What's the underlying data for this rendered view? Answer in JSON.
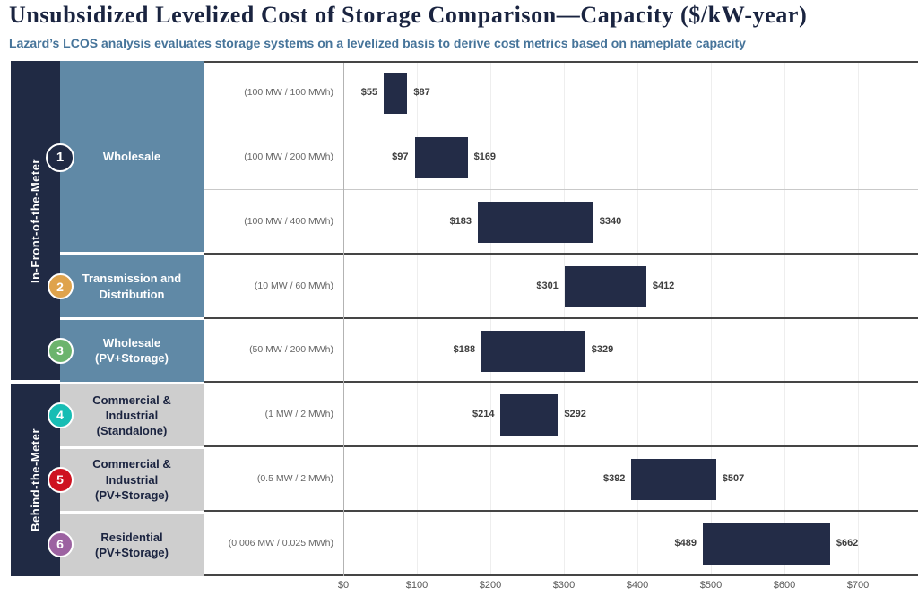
{
  "header": {
    "title": "Unsubsidized Levelized Cost of Storage Comparison—Capacity ($/kW-year)",
    "subtitle": "Lazard’s LCOS analysis evaluates storage systems on a levelized basis to derive cost metrics based on nameplate capacity"
  },
  "colors": {
    "navy": "#202A44",
    "bar": "#232C47",
    "steel_blue": "#6089A6",
    "gray_cell": "#CECECE",
    "dark_text": "#1B2440",
    "white_text": "#FFFFFF",
    "title_text": "#1A2440",
    "subtitle_text": "#46749A"
  },
  "meter_groups": [
    {
      "label": "In-Front-of-the-Meter",
      "row_span": 5
    },
    {
      "label": "Behind-the-Meter",
      "row_span": 3
    }
  ],
  "categories": [
    {
      "number": "1",
      "label": "Wholesale",
      "row_span": 3,
      "badge_color": "#202A44",
      "cell_bg": "#6089A6",
      "text_color": "#FFFFFF"
    },
    {
      "number": "2",
      "label": "Transmission and\nDistribution",
      "row_span": 1,
      "badge_color": "#DFA34C",
      "cell_bg": "#6089A6",
      "text_color": "#FFFFFF"
    },
    {
      "number": "3",
      "label": "Wholesale\n(PV+Storage)",
      "row_span": 1,
      "badge_color": "#6CB46D",
      "cell_bg": "#6089A6",
      "text_color": "#FFFFFF"
    },
    {
      "number": "4",
      "label": "Commercial &\nIndustrial\n(Standalone)",
      "row_span": 1,
      "badge_color": "#17BDB4",
      "cell_bg": "#CECECE",
      "text_color": "#1B2440"
    },
    {
      "number": "5",
      "label": "Commercial &\nIndustrial\n(PV+Storage)",
      "row_span": 1,
      "badge_color": "#CE1220",
      "cell_bg": "#CECECE",
      "text_color": "#1B2440"
    },
    {
      "number": "6",
      "label": "Residential\n(PV+Storage)",
      "row_span": 1,
      "badge_color": "#9C62A1",
      "cell_bg": "#CECECE",
      "text_color": "#1B2440"
    }
  ],
  "rows": [
    {
      "capacity": "(100 MW / 100 MWh)",
      "low": 55,
      "high": 87,
      "low_label": "$55",
      "high_label": "$87"
    },
    {
      "capacity": "(100 MW / 200 MWh)",
      "low": 97,
      "high": 169,
      "low_label": "$97",
      "high_label": "$169"
    },
    {
      "capacity": "(100 MW / 400 MWh)",
      "low": 183,
      "high": 340,
      "low_label": "$183",
      "high_label": "$340"
    },
    {
      "capacity": "(10 MW / 60 MWh)",
      "low": 301,
      "high": 412,
      "low_label": "$301",
      "high_label": "$412"
    },
    {
      "capacity": "(50 MW / 200 MWh)",
      "low": 188,
      "high": 329,
      "low_label": "$188",
      "high_label": "$329"
    },
    {
      "capacity": "(1 MW / 2 MWh)",
      "low": 214,
      "high": 292,
      "low_label": "$214",
      "high_label": "$292"
    },
    {
      "capacity": "(0.5 MW / 2 MWh)",
      "low": 392,
      "high": 507,
      "low_label": "$392",
      "high_label": "$507"
    },
    {
      "capacity": "(0.006 MW / 0.025 MWh)",
      "low": 489,
      "high": 662,
      "low_label": "$489",
      "high_label": "$662"
    }
  ],
  "axis": {
    "ticks": [
      {
        "label": "$0",
        "value": 0
      },
      {
        "label": "$100",
        "value": 100
      },
      {
        "label": "$200",
        "value": 200
      },
      {
        "label": "$300",
        "value": 300
      },
      {
        "label": "$400",
        "value": 400
      },
      {
        "label": "$500",
        "value": 500
      },
      {
        "label": "$600",
        "value": 600
      },
      {
        "label": "$700",
        "value": 700
      }
    ],
    "max": 700
  },
  "chart_data": {
    "type": "bar",
    "subtype": "horizontal-range",
    "title": "Unsubsidized Levelized Cost of Storage Comparison—Capacity ($/kW-year)",
    "subtitle": "Lazard’s LCOS analysis evaluates storage systems on a levelized basis to derive cost metrics based on nameplate capacity",
    "units": "$/kW-year",
    "xlim": [
      0,
      700
    ],
    "x_ticks": [
      "$0",
      "$100",
      "$200",
      "$300",
      "$400",
      "$500",
      "$600",
      "$700"
    ],
    "grid": true,
    "groups": [
      {
        "meter": "In-Front-of-the-Meter",
        "number": 1,
        "category": "Wholesale",
        "entries": [
          {
            "capacity": "(100 MW / 100 MWh)",
            "low": 55,
            "high": 87
          },
          {
            "capacity": "(100 MW / 200 MWh)",
            "low": 97,
            "high": 169
          },
          {
            "capacity": "(100 MW / 400 MWh)",
            "low": 183,
            "high": 340
          }
        ]
      },
      {
        "meter": "In-Front-of-the-Meter",
        "number": 2,
        "category": "Transmission and Distribution",
        "entries": [
          {
            "capacity": "(10 MW / 60 MWh)",
            "low": 301,
            "high": 412
          }
        ]
      },
      {
        "meter": "In-Front-of-the-Meter",
        "number": 3,
        "category": "Wholesale (PV+Storage)",
        "entries": [
          {
            "capacity": "(50 MW / 200 MWh)",
            "low": 188,
            "high": 329
          }
        ]
      },
      {
        "meter": "Behind-the-Meter",
        "number": 4,
        "category": "Commercial & Industrial (Standalone)",
        "entries": [
          {
            "capacity": "(1 MW / 2 MWh)",
            "low": 214,
            "high": 292
          }
        ]
      },
      {
        "meter": "Behind-the-Meter",
        "number": 5,
        "category": "Commercial & Industrial (PV+Storage)",
        "entries": [
          {
            "capacity": "(0.5 MW / 2 MWh)",
            "low": 392,
            "high": 507
          }
        ]
      },
      {
        "meter": "Behind-the-Meter",
        "number": 6,
        "category": "Residential (PV+Storage)",
        "entries": [
          {
            "capacity": "(0.006 MW / 0.025 MWh)",
            "low": 489,
            "high": 662
          }
        ]
      }
    ]
  }
}
